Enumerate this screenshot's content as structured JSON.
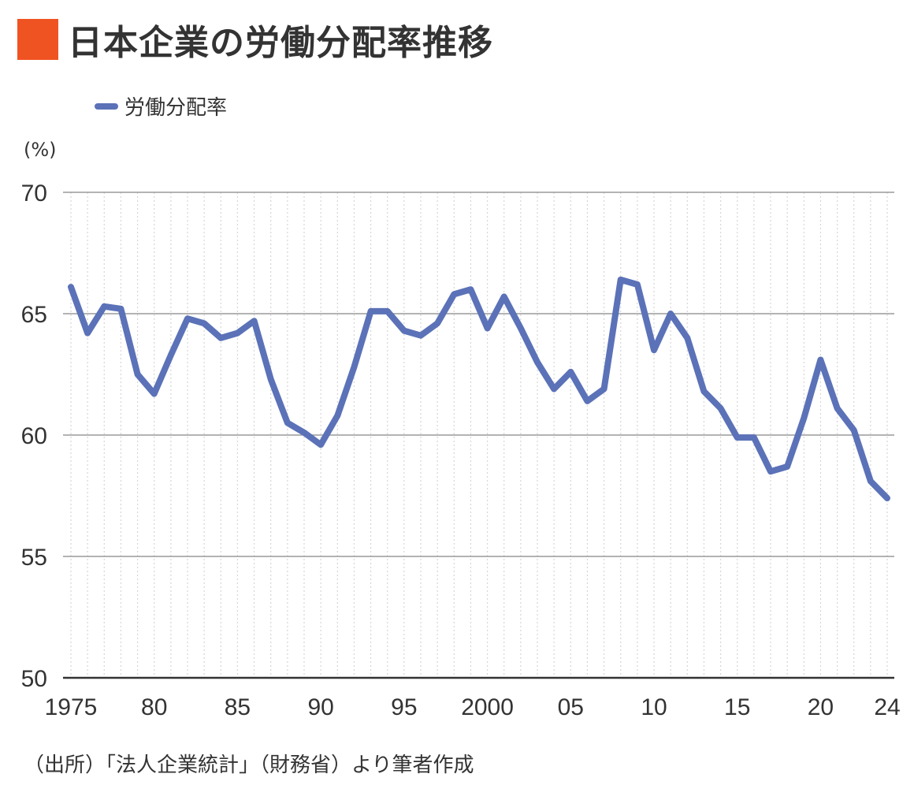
{
  "title": "日本企業の労働分配率推移",
  "colors": {
    "accent": "#f05322",
    "line": "#5b72b8",
    "grid": "#9a9a9a",
    "minor_grid": "#d6d6d6",
    "axis": "#333333"
  },
  "chart_data": {
    "type": "line",
    "title": "日本企業の労働分配率推移",
    "ylabel": "(%)",
    "xlabel": "",
    "ylim": [
      50,
      70
    ],
    "yticks": [
      50,
      55,
      60,
      65,
      70
    ],
    "x_tick_labels": [
      {
        "year": 1975,
        "label": "1975"
      },
      {
        "year": 1980,
        "label": "80"
      },
      {
        "year": 1985,
        "label": "85"
      },
      {
        "year": 1990,
        "label": "90"
      },
      {
        "year": 1995,
        "label": "95"
      },
      {
        "year": 2000,
        "label": "2000"
      },
      {
        "year": 2005,
        "label": "05"
      },
      {
        "year": 2010,
        "label": "10"
      },
      {
        "year": 2015,
        "label": "15"
      },
      {
        "year": 2020,
        "label": "20"
      },
      {
        "year": 2024,
        "label": "24"
      }
    ],
    "legend": "top-left",
    "series": [
      {
        "name": "労働分配率",
        "x": [
          1975,
          1976,
          1977,
          1978,
          1979,
          1980,
          1981,
          1982,
          1983,
          1984,
          1985,
          1986,
          1987,
          1988,
          1989,
          1990,
          1991,
          1992,
          1993,
          1994,
          1995,
          1996,
          1997,
          1998,
          1999,
          2000,
          2001,
          2002,
          2003,
          2004,
          2005,
          2006,
          2007,
          2008,
          2009,
          2010,
          2011,
          2012,
          2013,
          2014,
          2015,
          2016,
          2017,
          2018,
          2019,
          2020,
          2021,
          2022,
          2023,
          2024
        ],
        "values": [
          66.1,
          64.2,
          65.3,
          65.2,
          62.5,
          61.7,
          63.3,
          64.8,
          64.6,
          64.0,
          64.2,
          64.7,
          62.3,
          60.5,
          60.1,
          59.6,
          60.8,
          62.8,
          65.1,
          65.1,
          64.3,
          64.1,
          64.6,
          65.8,
          66.0,
          64.4,
          65.7,
          64.4,
          63.0,
          61.9,
          62.6,
          61.4,
          61.9,
          66.4,
          66.2,
          63.5,
          65.0,
          64.0,
          61.8,
          61.1,
          59.9,
          59.9,
          58.5,
          58.7,
          60.7,
          63.1,
          61.1,
          60.2,
          58.1,
          57.4
        ]
      }
    ]
  },
  "source": "（出所）「法人企業統計」（財務省）より筆者作成"
}
